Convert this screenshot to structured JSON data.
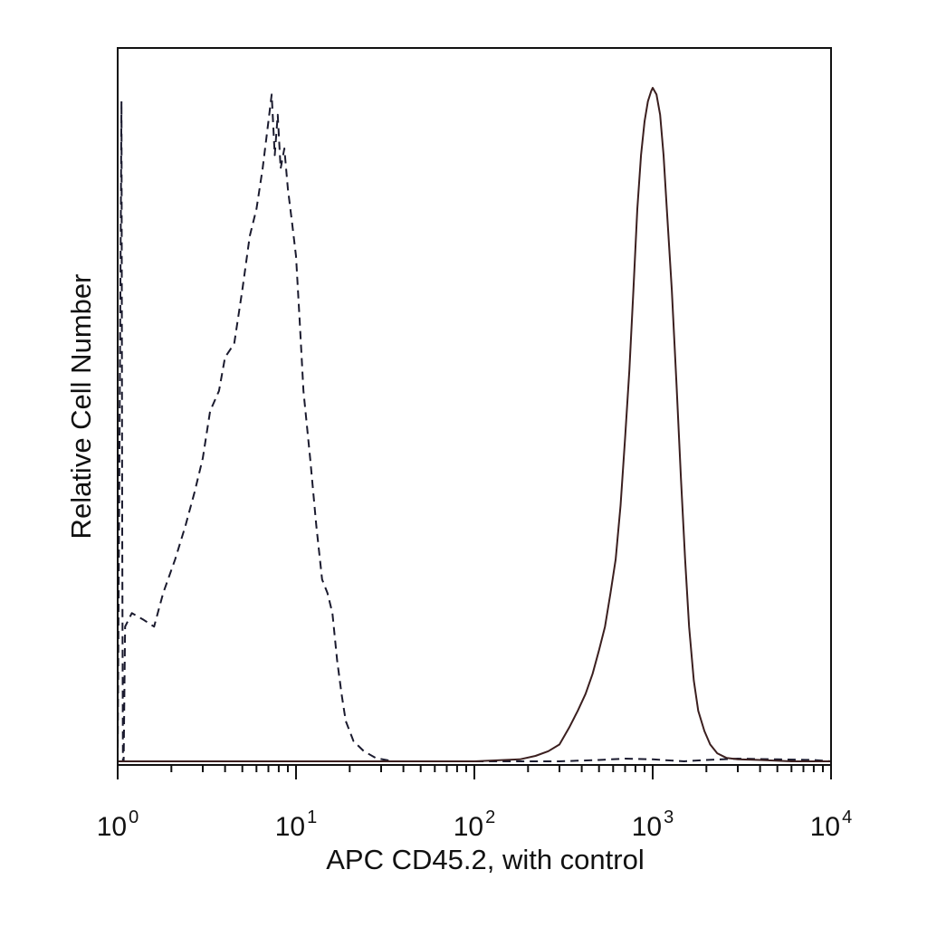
{
  "chart_data": {
    "type": "line",
    "title": "",
    "xlabel": "APC CD45.2, with control",
    "ylabel": "Relative Cell Number",
    "x_scale": "log",
    "xlim": [
      1,
      10000
    ],
    "ylim": [
      0,
      1
    ],
    "x_ticks": [
      {
        "value": 1,
        "base": "10",
        "exp": "0"
      },
      {
        "value": 10,
        "base": "10",
        "exp": "1"
      },
      {
        "value": 100,
        "base": "10",
        "exp": "2"
      },
      {
        "value": 1000,
        "base": "10",
        "exp": "3"
      },
      {
        "value": 10000,
        "base": "10",
        "exp": "4"
      }
    ],
    "grid": false,
    "legend": "none",
    "series": [
      {
        "style": "dashed",
        "color": "#1a1a2e",
        "x": [
          1.0,
          1.02,
          1.05,
          1.06,
          1.07,
          1.08,
          1.1,
          1.2,
          1.4,
          1.6,
          1.8,
          2.1,
          2.4,
          2.7,
          3.0,
          3.3,
          3.7,
          4.0,
          4.5,
          5.0,
          5.5,
          6.0,
          6.5,
          7.0,
          7.3,
          7.6,
          7.9,
          8.2,
          8.6,
          9.0,
          9.5,
          10.0,
          10.5,
          11.0,
          12.0,
          13.0,
          14.0,
          15.0,
          16.0,
          17.0,
          18.0,
          19.0,
          21.0,
          24.0,
          28.0,
          35.0,
          60.0,
          100.0,
          200.0,
          300.0,
          500.0,
          700.0,
          1000.0,
          1500.0,
          2000.0,
          3000.0,
          5000.0,
          8000.0,
          10000.0
        ],
        "y": [
          0.0,
          0.4,
          0.98,
          0.35,
          0.0,
          0.0,
          0.2,
          0.22,
          0.21,
          0.2,
          0.25,
          0.3,
          0.35,
          0.4,
          0.45,
          0.52,
          0.55,
          0.6,
          0.62,
          0.7,
          0.78,
          0.82,
          0.88,
          0.95,
          0.99,
          0.9,
          0.96,
          0.88,
          0.91,
          0.85,
          0.8,
          0.75,
          0.65,
          0.55,
          0.45,
          0.35,
          0.27,
          0.25,
          0.22,
          0.15,
          0.1,
          0.06,
          0.03,
          0.015,
          0.005,
          0.0,
          0.0,
          0.0,
          0.0,
          0.0,
          0.002,
          0.004,
          0.003,
          0.0,
          0.002,
          0.004,
          0.003,
          0.002,
          0.0
        ]
      },
      {
        "style": "solid",
        "color": "#3b1f1f",
        "x": [
          1.0,
          100.0,
          180.0,
          220.0,
          260.0,
          300.0,
          340.0,
          380.0,
          420.0,
          460.0,
          500.0,
          540.0,
          580.0,
          620.0,
          660.0,
          700.0,
          740.0,
          780.0,
          820.0,
          860.0,
          900.0,
          940.0,
          980.0,
          1000.0,
          1050.0,
          1100.0,
          1150.0,
          1200.0,
          1280.0,
          1360.0,
          1440.0,
          1520.0,
          1600.0,
          1700.0,
          1800.0,
          1950.0,
          2100.0,
          2300.0,
          2600.0,
          3000.0,
          4000.0,
          6000.0,
          10000.0
        ],
        "y": [
          0.0,
          0.0,
          0.003,
          0.008,
          0.015,
          0.025,
          0.05,
          0.075,
          0.1,
          0.13,
          0.165,
          0.2,
          0.25,
          0.3,
          0.38,
          0.48,
          0.58,
          0.7,
          0.82,
          0.9,
          0.95,
          0.98,
          0.995,
          1.0,
          0.99,
          0.96,
          0.9,
          0.82,
          0.7,
          0.56,
          0.42,
          0.3,
          0.2,
          0.12,
          0.075,
          0.045,
          0.025,
          0.012,
          0.005,
          0.003,
          0.002,
          0.0,
          0.0
        ]
      }
    ]
  }
}
